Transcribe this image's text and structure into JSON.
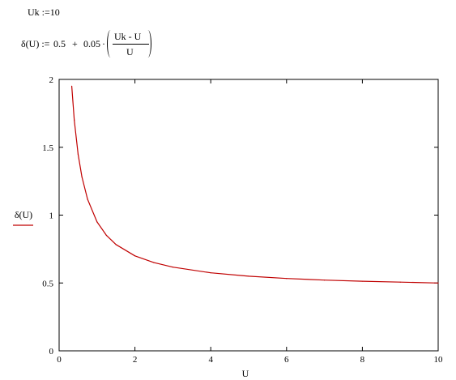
{
  "equations": {
    "uk_def": "Uk :=10",
    "delta_lhs": "δ(U) :=",
    "delta_const": "0.5",
    "delta_plus": "+",
    "delta_coef": "0.05",
    "delta_dot": "·",
    "delta_num": "Uk -  U",
    "delta_den": "U"
  },
  "chart_data": {
    "type": "line",
    "title": "",
    "xlabel": "U",
    "ylabel": "δ(U)",
    "xlim": [
      0,
      10
    ],
    "ylim": [
      0,
      2
    ],
    "x_ticks": [
      "0",
      "2",
      "4",
      "6",
      "8",
      "10"
    ],
    "y_ticks": [
      "0",
      "0.5",
      "1",
      "1.5",
      "2"
    ],
    "series": [
      {
        "color": "#c00000",
        "x": [
          0.333,
          0.4,
          0.5,
          0.6,
          0.75,
          1,
          1.25,
          1.5,
          2,
          2.5,
          3,
          4,
          5,
          6,
          7,
          8,
          9,
          10
        ],
        "values": [
          1.95,
          1.7,
          1.45,
          1.283,
          1.117,
          0.95,
          0.85,
          0.783,
          0.7,
          0.65,
          0.617,
          0.575,
          0.55,
          0.533,
          0.521,
          0.513,
          0.506,
          0.5
        ]
      }
    ],
    "grid": false,
    "legend": "left"
  }
}
